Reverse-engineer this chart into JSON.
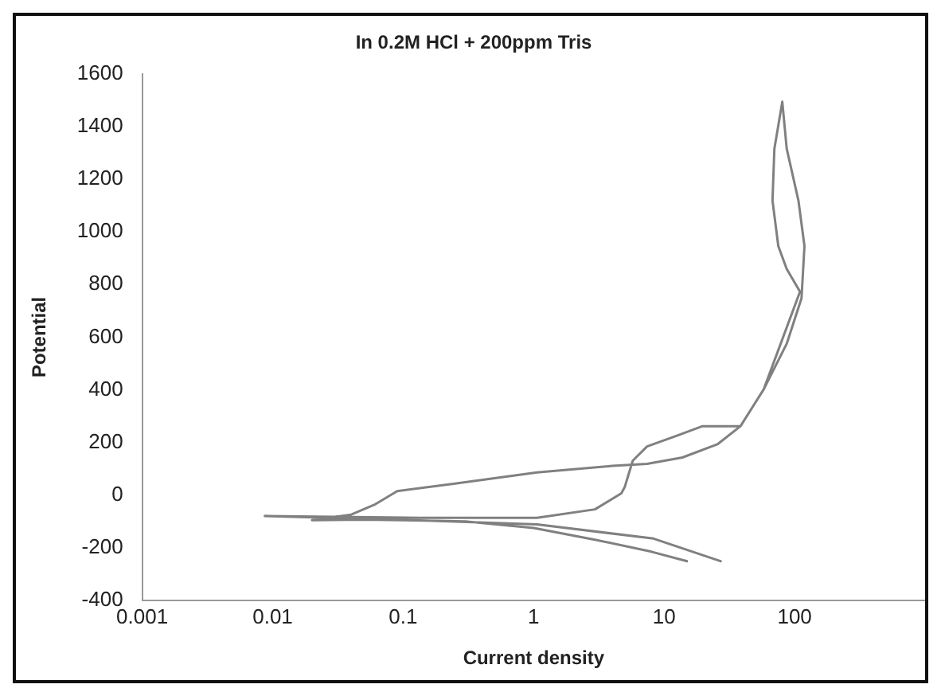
{
  "chart_data": {
    "type": "line",
    "title": "In 0.2M HCl + 200ppm Tris",
    "xlabel": "Current density",
    "ylabel": "Potential",
    "log": "x",
    "grid": false,
    "legend": false,
    "marker": "none",
    "line_style": "solid",
    "xlim": [
      0.001,
      1000
    ],
    "xticks": [
      0.001,
      0.01,
      0.1,
      1,
      10,
      100
    ],
    "ylim": [
      -400,
      1600
    ],
    "yticks": [
      -400,
      -200,
      0,
      200,
      400,
      600,
      800,
      1000,
      1200,
      1400,
      1600
    ],
    "series": [
      {
        "color": "#808080",
        "x": [
          15.2,
          8,
          3,
          1,
          0.3,
          0.1,
          0.05,
          0.02,
          0.04,
          0.06,
          0.09,
          0.25,
          1.06,
          4,
          7.4,
          13.8,
          25.6,
          38.5,
          58,
          87,
          113,
          119,
          107,
          87,
          80.5,
          70,
          67.7,
          75,
          87,
          110,
          58,
          38.5,
          19.7,
          12.4,
          7.4,
          5.75,
          5,
          4.7,
          2.95,
          1.06,
          0.135,
          0.0087,
          0.135,
          1.06,
          8.3,
          27.6
        ],
        "values": [
          -252,
          -215,
          -170,
          -125,
          -100,
          -95,
          -93,
          -95,
          -74,
          -37,
          15,
          44,
          86,
          111,
          119,
          143,
          193,
          262,
          402,
          575,
          748,
          946,
          1119,
          1316,
          1494,
          1316,
          1119,
          946,
          859,
          773,
          402,
          262,
          262,
          225,
          185,
          131,
          32,
          7,
          -54,
          -86,
          -86,
          -79,
          -96,
          -111,
          -165,
          -252
        ]
      }
    ]
  }
}
